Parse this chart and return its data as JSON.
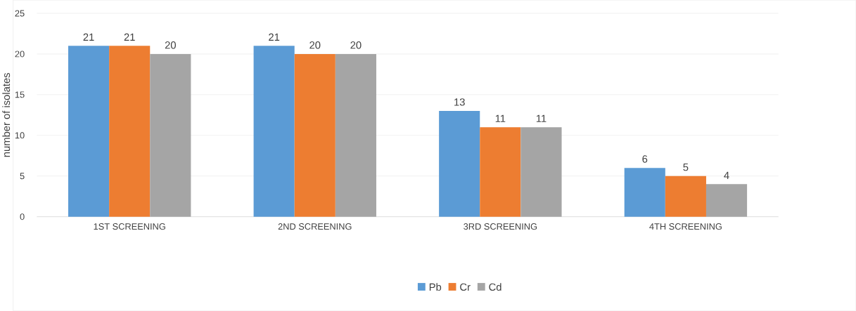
{
  "chart_data": {
    "type": "bar",
    "ylabel": "number of isolates",
    "categories": [
      "1ST SCREENING",
      "2ND SCREENING",
      "3RD SCREENING",
      "4TH SCREENING"
    ],
    "series": [
      {
        "name": "Pb",
        "color": "#5b9bd5",
        "values": [
          21,
          21,
          13,
          6
        ]
      },
      {
        "name": "Cr",
        "color": "#ed7d31",
        "values": [
          21,
          20,
          11,
          5
        ]
      },
      {
        "name": "Cd",
        "color": "#a5a5a5",
        "values": [
          20,
          20,
          11,
          4
        ]
      }
    ],
    "ylim": [
      0,
      25
    ],
    "yticks": [
      0,
      5,
      10,
      15,
      20,
      25
    ],
    "grid": "y",
    "legend": "bottom",
    "data_labels": true
  }
}
